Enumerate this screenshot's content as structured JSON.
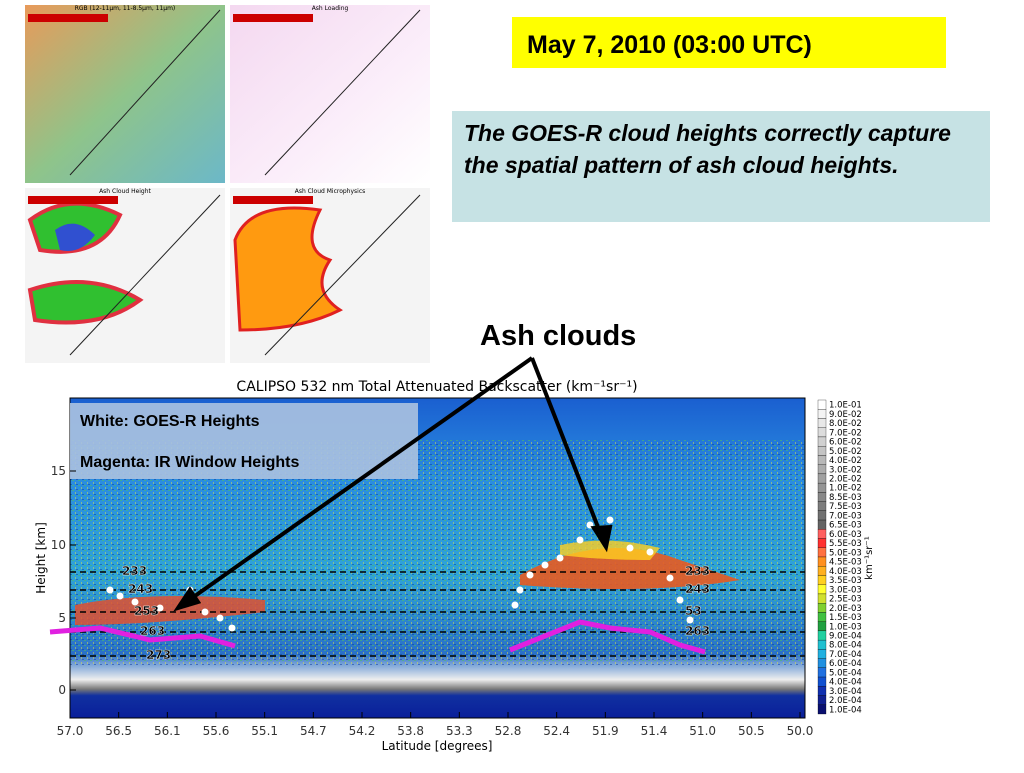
{
  "slide": {
    "title": "May 7, 2010 (03:00 UTC)",
    "callout": "The GOES-R cloud heights correctly capture the spatial pattern of ash cloud heights.",
    "annotation": "Ash clouds"
  },
  "panels": [
    {
      "title": "RGB (12-11µm, 11-8.5µm, 11µm)"
    },
    {
      "title": "Ash Loading"
    },
    {
      "title": "Ash Cloud Height"
    },
    {
      "title": "Ash Cloud Microphysics"
    }
  ],
  "plot": {
    "title": "CALIPSO 532 nm Total Attenuated Backscatter (km⁻¹sr⁻¹)",
    "legend": [
      "White: GOES-R Heights",
      "Magenta: IR Window Heights"
    ],
    "y_label": "Height [km]",
    "y_ticks": [
      "0",
      "5",
      "10",
      "15"
    ],
    "x_label": "Latitude [degrees]",
    "x_ticks": [
      "57.0",
      "56.5",
      "56.1",
      "55.6",
      "55.1",
      "54.7",
      "54.2",
      "53.8",
      "53.3",
      "52.8",
      "52.4",
      "51.9",
      "51.4",
      "51.0",
      "50.5",
      "50.0"
    ],
    "colorbar_unit": "km⁻¹sr⁻¹",
    "colorbar_labels": [
      "1.0E-01",
      "9.0E-02",
      "8.0E-02",
      "7.0E-02",
      "6.0E-02",
      "5.0E-02",
      "4.0E-02",
      "3.0E-02",
      "2.0E-02",
      "1.0E-02",
      "8.5E-03",
      "7.5E-03",
      "7.0E-03",
      "6.5E-03",
      "6.0E-03",
      "5.5E-03",
      "5.0E-03",
      "4.5E-03",
      "4.0E-03",
      "3.5E-03",
      "3.0E-03",
      "2.5E-03",
      "2.0E-03",
      "1.5E-03",
      "1.0E-03",
      "9.0E-04",
      "8.0E-04",
      "7.0E-04",
      "6.0E-04",
      "5.0E-04",
      "4.0E-04",
      "3.0E-04",
      "2.0E-04",
      "1.0E-04"
    ],
    "contour_labels_left": [
      "233",
      "243",
      "253",
      "263",
      "273"
    ],
    "contour_labels_right": [
      "233",
      "243",
      "53",
      "263"
    ]
  }
}
